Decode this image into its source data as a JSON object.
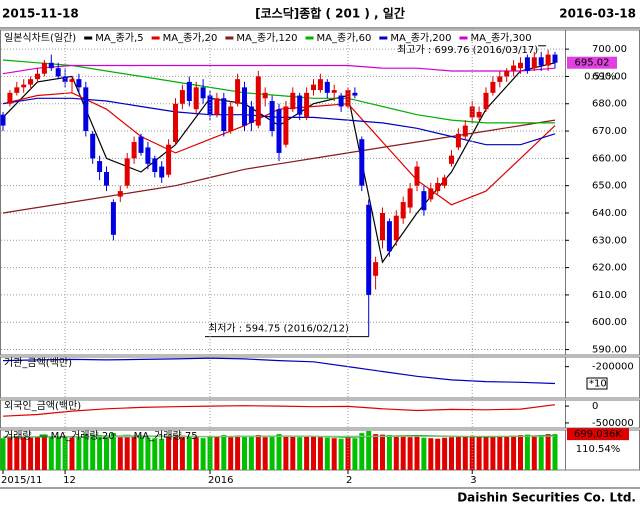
{
  "header": {
    "left": "2015-11-18",
    "title": "[코스닥]종합 ( 201 ) , 일간",
    "right": "2016-03-18"
  },
  "footer": "Daishin Securities Co. Ltd.",
  "chart_data": [
    {
      "type": "candlestick",
      "title": "일본식차트(일간)",
      "up_color": "#e00000",
      "down_color": "#0000e0",
      "ylim": [
        588,
        707
      ],
      "yticks": [
        {
          "value": 700,
          "label": "700.00"
        },
        {
          "value": 690,
          "label": "690.00"
        },
        {
          "value": 680,
          "label": "680.00"
        },
        {
          "value": 670,
          "label": "670.00"
        },
        {
          "value": 660,
          "label": "660.00"
        },
        {
          "value": 650,
          "label": "650.00"
        },
        {
          "value": 640,
          "label": "640.00"
        },
        {
          "value": 630,
          "label": "630.00"
        },
        {
          "value": 620,
          "label": "620.00"
        },
        {
          "value": 610,
          "label": "610.00"
        },
        {
          "value": 600,
          "label": "600.00"
        },
        {
          "value": 590,
          "label": "590.00"
        }
      ],
      "grid": true,
      "candles": [
        [
          676,
          677,
          670,
          672
        ],
        [
          680,
          685,
          679,
          684
        ],
        [
          684,
          688,
          683,
          686
        ],
        [
          686,
          689,
          684,
          687
        ],
        [
          687,
          690,
          685,
          689
        ],
        [
          689,
          693,
          688,
          691
        ],
        [
          691,
          696,
          690,
          695
        ],
        [
          695,
          698,
          692,
          693
        ],
        [
          693,
          695,
          689,
          690
        ],
        [
          690,
          693,
          686,
          688
        ],
        [
          688,
          690,
          684,
          689
        ],
        [
          689,
          691,
          684,
          686
        ],
        [
          686,
          688,
          668,
          670
        ],
        [
          669,
          670,
          658,
          660
        ],
        [
          659,
          661,
          652,
          655
        ],
        [
          655,
          657,
          648,
          650
        ],
        [
          644,
          645,
          630,
          632
        ],
        [
          646,
          650,
          644,
          648
        ],
        [
          650,
          662,
          649,
          660
        ],
        [
          660,
          668,
          658,
          666
        ],
        [
          668,
          669,
          661,
          662
        ],
        [
          664,
          666,
          656,
          658
        ],
        [
          660,
          661,
          653,
          655
        ],
        [
          657,
          659,
          651,
          653
        ],
        [
          654,
          667,
          653,
          665
        ],
        [
          666,
          682,
          665,
          680
        ],
        [
          680,
          687,
          678,
          685
        ],
        [
          688,
          690,
          679,
          681
        ],
        [
          678,
          688,
          676,
          686
        ],
        [
          686,
          689,
          680,
          682
        ],
        [
          683,
          685,
          674,
          676
        ],
        [
          676,
          684,
          675,
          682
        ],
        [
          682,
          684,
          668,
          670
        ],
        [
          670,
          681,
          669,
          679
        ],
        [
          680,
          691,
          679,
          689
        ],
        [
          686,
          688,
          670,
          672
        ],
        [
          679,
          681,
          670,
          673
        ],
        [
          672,
          692,
          671,
          690
        ],
        [
          682,
          686,
          679,
          684
        ],
        [
          681,
          683,
          668,
          670
        ],
        [
          678,
          680,
          659,
          662
        ],
        [
          665,
          681,
          664,
          679
        ],
        [
          678,
          686,
          677,
          684
        ],
        [
          683,
          684,
          674,
          676
        ],
        [
          675,
          686,
          674,
          684
        ],
        [
          685,
          689,
          683,
          687
        ],
        [
          685,
          691,
          684,
          689
        ],
        [
          688,
          689,
          682,
          684
        ],
        [
          684,
          687,
          681,
          685
        ],
        [
          683,
          684,
          677,
          679
        ],
        [
          679,
          686,
          678,
          685
        ],
        [
          684,
          686,
          682,
          683
        ],
        [
          667,
          668,
          648,
          650
        ],
        [
          643,
          645,
          594.75,
          610
        ],
        [
          617,
          624,
          612,
          622
        ],
        [
          630,
          642,
          627,
          640
        ],
        [
          637,
          638,
          624,
          626
        ],
        [
          630,
          641,
          628,
          639
        ],
        [
          638,
          646,
          636,
          644
        ],
        [
          642,
          651,
          640,
          649
        ],
        [
          650,
          659,
          648,
          657
        ],
        [
          648,
          650,
          639,
          641
        ],
        [
          645,
          651,
          644,
          649
        ],
        [
          648,
          653,
          647,
          651
        ],
        [
          650,
          654,
          649,
          653
        ],
        [
          658,
          663,
          657,
          661
        ],
        [
          664,
          671,
          663,
          669
        ],
        [
          668,
          674,
          667,
          672
        ],
        [
          675,
          681,
          673,
          679
        ],
        [
          675,
          679,
          674,
          677
        ],
        [
          678,
          686,
          677,
          684
        ],
        [
          684,
          690,
          683,
          688
        ],
        [
          688,
          692,
          686,
          690
        ],
        [
          690,
          693,
          688,
          692
        ],
        [
          692,
          696,
          690,
          694
        ],
        [
          693,
          697,
          691,
          695
        ],
        [
          697,
          698,
          691,
          692
        ],
        [
          693,
          699,
          692,
          697
        ],
        [
          697,
          699,
          692,
          694
        ],
        [
          694,
          699.76,
          692,
          698
        ],
        [
          698,
          699,
          693,
          695.02
        ]
      ],
      "series_x": [
        0,
        5,
        10,
        15,
        20,
        25,
        30,
        35,
        40,
        45,
        50,
        55,
        60,
        65,
        70,
        75,
        80
      ],
      "series": [
        {
          "name": "MA_종가,5",
          "color": "#000000",
          "values": [
            675,
            688,
            690,
            660,
            655,
            665,
            682,
            680,
            672,
            680,
            683,
            622,
            640,
            655,
            678,
            692,
            695
          ]
        },
        {
          "name": "MA_종가,20",
          "color": "#e00000",
          "values": [
            680,
            683,
            684,
            678,
            668,
            662,
            667,
            672,
            678,
            679,
            680,
            666,
            652,
            643,
            648,
            660,
            672
          ]
        },
        {
          "name": "MA_종가,120",
          "color": "#8b1a1a",
          "values": [
            640,
            642,
            644,
            646,
            648,
            650,
            653,
            656,
            658,
            660,
            662,
            664,
            666,
            668,
            670,
            672,
            674
          ]
        },
        {
          "name": "MA_종가,60",
          "color": "#00b000",
          "values": [
            696,
            695,
            694,
            692,
            690,
            688,
            686,
            684,
            683,
            682,
            682,
            679,
            676,
            674,
            673,
            673,
            673
          ]
        },
        {
          "name": "MA_종가,200",
          "color": "#0000c0",
          "values": [
            680,
            682,
            682,
            681,
            679,
            677,
            676,
            676,
            675,
            675,
            674,
            673,
            671,
            668,
            665,
            665,
            669
          ]
        },
        {
          "name": "MA_종가,300",
          "color": "#d000d0",
          "values": [
            691,
            693,
            694,
            694,
            694,
            694,
            694,
            694,
            694,
            694,
            694,
            693,
            693,
            692,
            692,
            692,
            693
          ]
        }
      ],
      "annotations": [
        {
          "text": "최고가 : 699.76 (2016/03/17)",
          "index": 79
        },
        {
          "text": "최저가 : 594.75 (2016/02/12)",
          "index": 53
        }
      ],
      "change_label": "0.51%"
    },
    {
      "type": "line",
      "title": "기관_금액(백만)",
      "ylim": [
        -330000,
        -160000
      ],
      "yticks": [
        -200000
      ],
      "scale_note": "*10",
      "series_x": [
        0,
        5,
        10,
        15,
        20,
        25,
        30,
        35,
        40,
        45,
        50,
        55,
        60,
        65,
        70,
        75,
        80
      ],
      "series": [
        {
          "name": "기관_금액(백만)",
          "color": "#0000c0",
          "values": [
            -175000,
            -172000,
            -170000,
            -172000,
            -170000,
            -168000,
            -165000,
            -168000,
            -175000,
            -180000,
            -200000,
            -220000,
            -240000,
            -255000,
            -262000,
            -265000,
            -270000
          ]
        }
      ]
    },
    {
      "type": "line",
      "title": "외국인_금액(백만)",
      "ylim": [
        -650000,
        180000
      ],
      "yticks": [
        0,
        -500000
      ],
      "series_x": [
        0,
        5,
        10,
        15,
        20,
        25,
        30,
        35,
        40,
        45,
        50,
        55,
        60,
        65,
        70,
        75,
        80
      ],
      "series": [
        {
          "name": "외국인_금액(백만)",
          "color": "#e00000",
          "values": [
            -300000,
            -250000,
            -150000,
            -80000,
            -40000,
            -20000,
            0,
            10000,
            0,
            -20000,
            -10000,
            -80000,
            -130000,
            -100000,
            -110000,
            -90000,
            40000
          ]
        }
      ]
    },
    {
      "type": "bar",
      "title": "거래량",
      "ylim": [
        0,
        780000
      ],
      "up_color": "#e00000",
      "down_color": "#00c000",
      "values": [
        620000,
        650000,
        660000,
        640000,
        630000,
        650000,
        670000,
        660000,
        640000,
        650000,
        630000,
        640000,
        700000,
        690000,
        680000,
        660000,
        720000,
        640000,
        650000,
        660000,
        640000,
        630000,
        620000,
        610000,
        650000,
        680000,
        670000,
        650000,
        640000,
        620000,
        650000,
        660000,
        680000,
        640000,
        670000,
        660000,
        650000,
        680000,
        640000,
        660000,
        700000,
        670000,
        650000,
        640000,
        660000,
        650000,
        640000,
        630000,
        620000,
        610000,
        630000,
        620000,
        720000,
        760000,
        700000,
        690000,
        680000,
        660000,
        650000,
        640000,
        650000,
        630000,
        620000,
        610000,
        630000,
        640000,
        650000,
        660000,
        670000,
        650000,
        660000,
        640000,
        650000,
        660000,
        670000,
        680000,
        690000,
        660000,
        680000,
        700000,
        699036
      ],
      "series_x": [
        0,
        5,
        10,
        15,
        20,
        25,
        30,
        35,
        40,
        45,
        50,
        55,
        60,
        65,
        70,
        75,
        80
      ],
      "series": [
        {
          "name": "MA_거래량,20",
          "color": "#00a000",
          "values": [
            640000,
            645000,
            648000,
            660000,
            662000,
            655000,
            650000,
            655000,
            660000,
            655000,
            640000,
            660000,
            670000,
            655000,
            645000,
            660000,
            672000
          ]
        },
        {
          "name": "MA_거래량,75",
          "color": "#80c080",
          "values": [
            650000,
            650000,
            651000,
            652000,
            653000,
            653000,
            654000,
            654000,
            655000,
            655000,
            655000,
            656000,
            657000,
            657000,
            658000,
            658000,
            659000
          ]
        }
      ],
      "last_label": "699,036K",
      "ratio_label": "110.54%",
      "xaxis": [
        {
          "index": 0,
          "label": "2015/11"
        },
        {
          "index": 9,
          "label": "12"
        },
        {
          "index": 30,
          "label": "2016"
        },
        {
          "index": 50,
          "label": "2"
        },
        {
          "index": 68,
          "label": "3"
        }
      ]
    }
  ]
}
